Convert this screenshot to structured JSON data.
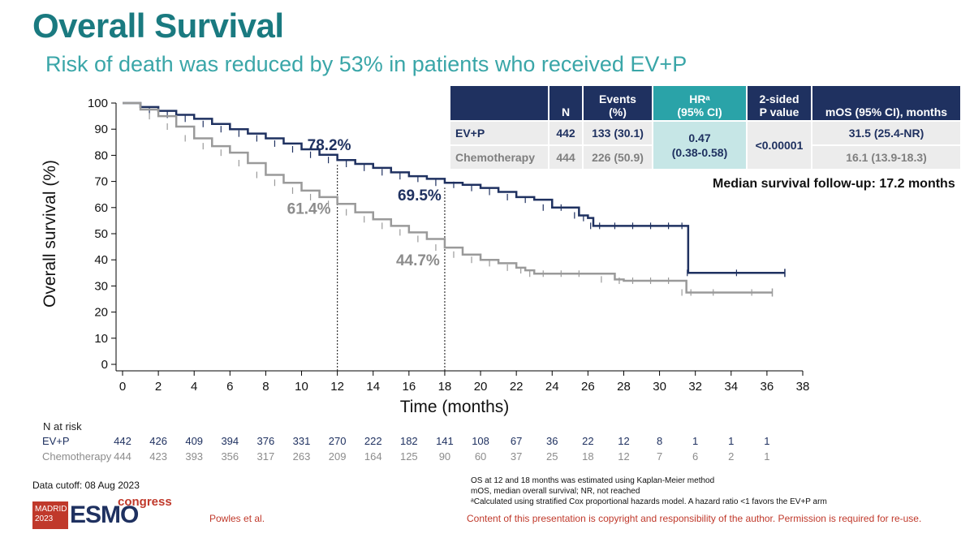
{
  "title": "Overall Survival",
  "subtitle": "Risk of death was reduced by 53% in patients who received EV+P",
  "table": {
    "headers": {
      "arm": "",
      "n": "N",
      "events_line1": "Events",
      "events_line2": "(%)",
      "hr_line1": "HRᵃ",
      "hr_line2": "(95% CI)",
      "p_line1": "2-sided",
      "p_line2": "P value",
      "mos": "mOS (95% CI), months"
    },
    "rows": [
      {
        "arm": "EV+P",
        "n": "442",
        "events": "133 (30.1)",
        "mos": "31.5 (25.4-NR)"
      },
      {
        "arm": "Chemotherapy",
        "n": "444",
        "events": "226 (50.9)",
        "mos": "16.1 (13.9-18.3)"
      }
    ],
    "hr_value": "0.47",
    "hr_ci": "(0.38-0.58)",
    "p_value": "<0.00001"
  },
  "followup": "Median survival follow-up: 17.2 months",
  "chart_data": {
    "type": "line",
    "title": "Overall Survival",
    "xlabel": "Time (months)",
    "ylabel": "Overall survival (%)",
    "xlim": [
      0,
      38
    ],
    "ylim": [
      0,
      100
    ],
    "x_ticks": [
      "0",
      "2",
      "4",
      "6",
      "8",
      "10",
      "12",
      "14",
      "16",
      "18",
      "20",
      "22",
      "24",
      "26",
      "28",
      "30",
      "32",
      "34",
      "36",
      "38"
    ],
    "y_ticks": [
      "0",
      "10",
      "20",
      "30",
      "40",
      "50",
      "60",
      "70",
      "80",
      "90",
      "100"
    ],
    "series": [
      {
        "name": "EV+P",
        "color": "#1f3160",
        "x": [
          0,
          1,
          2,
          3,
          4,
          5,
          6,
          7,
          8,
          9,
          10,
          11,
          12,
          13,
          14,
          15,
          16,
          17,
          18,
          19,
          20,
          21,
          22,
          23,
          24,
          25,
          25.5,
          26,
          26.3,
          27,
          28,
          29,
          30,
          31,
          31.5,
          31.6,
          37
        ],
        "y": [
          100,
          98.5,
          97,
          95.5,
          94,
          92,
          90,
          88.3,
          86.5,
          84.5,
          82.3,
          80.2,
          78.2,
          76.7,
          75.2,
          73.5,
          72,
          71,
          69.5,
          68.7,
          67.5,
          66,
          64,
          63,
          60,
          60,
          57,
          56,
          53,
          53,
          53,
          53,
          53,
          53,
          53,
          35,
          35
        ]
      },
      {
        "name": "Chemotherapy",
        "color": "#9a9a9a",
        "x": [
          0,
          1,
          2,
          3,
          4,
          5,
          6,
          7,
          8,
          9,
          10,
          11,
          12,
          13,
          14,
          15,
          16,
          17,
          18,
          19,
          20,
          21,
          22,
          22.5,
          23,
          24,
          25,
          26,
          27.5,
          28,
          29,
          30,
          31,
          31.5,
          32,
          34,
          36.3
        ],
        "y": [
          100,
          97.5,
          95,
          91,
          86.5,
          83.5,
          81,
          77,
          72.5,
          69.5,
          66.5,
          64,
          61.4,
          58.2,
          55.5,
          53,
          50.5,
          48,
          44.7,
          42,
          40,
          38.7,
          37,
          36,
          34.7,
          34.7,
          34.7,
          34.7,
          32.5,
          32,
          32,
          32,
          32,
          27.5,
          27.5,
          27.5,
          27.5
        ]
      }
    ],
    "annotations": [
      {
        "text": "78.2%",
        "x": 12,
        "y": 78.2,
        "series": "EV+P"
      },
      {
        "text": "61.4%",
        "x": 12,
        "y": 61.4,
        "series": "Chemotherapy"
      },
      {
        "text": "69.5%",
        "x": 18,
        "y": 69.5,
        "series": "EV+P"
      },
      {
        "text": "44.7%",
        "x": 18,
        "y": 44.7,
        "series": "Chemotherapy"
      }
    ],
    "reference_lines_x": [
      12,
      18
    ]
  },
  "risk": {
    "title": "N at risk",
    "evp_label": "EV+P",
    "chemo_label": "Chemotherapy",
    "evp": [
      "442",
      "426",
      "409",
      "394",
      "376",
      "331",
      "270",
      "222",
      "182",
      "141",
      "108",
      "67",
      "36",
      "22",
      "12",
      "8",
      "1",
      "1",
      "1"
    ],
    "chemo": [
      "444",
      "423",
      "393",
      "356",
      "317",
      "263",
      "209",
      "164",
      "125",
      "90",
      "60",
      "37",
      "25",
      "18",
      "12",
      "7",
      "6",
      "2",
      "1"
    ]
  },
  "footer": {
    "cutoff": "Data cutoff: 08 Aug 2023",
    "note1": "OS at 12 and 18 months was estimated using Kaplan-Meier method",
    "note2": "mOS, median overall survival; NR, not reached",
    "note3": "ᵃCalculated using stratified Cox proportional hazards model. A hazard ratio <1 favors the EV+P arm",
    "author": "Powles et al.",
    "copyright": "Content of this presentation is copyright and responsibility of the author. Permission is required for re-use.",
    "logo_city": "MADRID",
    "logo_year": "2023",
    "logo_name": "ESMO",
    "logo_congress": "congress"
  }
}
